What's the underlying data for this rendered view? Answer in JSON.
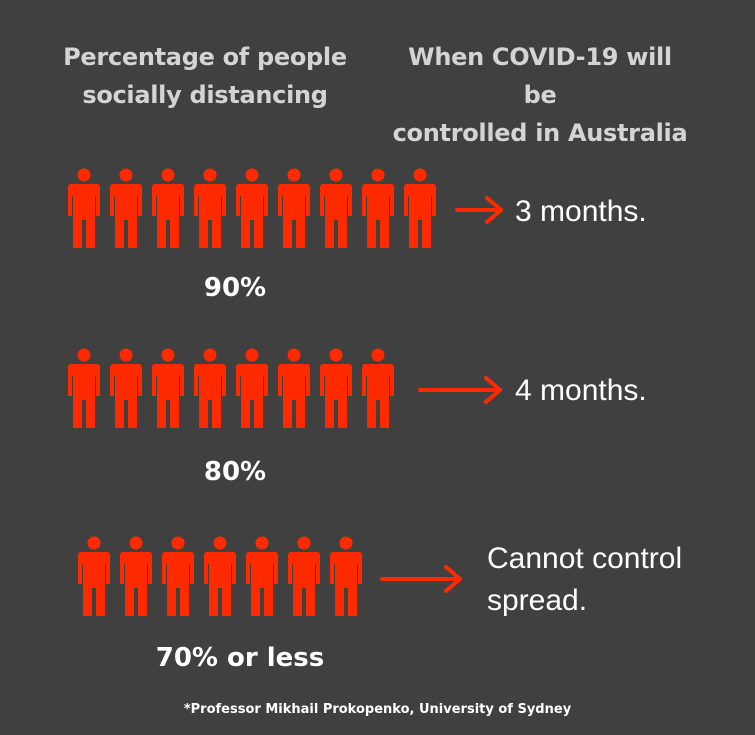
{
  "headers": {
    "left": "Percentage of people\nsocially distancing",
    "right": "When COVID-19 will be\ncontrolled in Australia"
  },
  "rows": [
    {
      "people_count": 9,
      "percentage": "90%",
      "result": "3 months."
    },
    {
      "people_count": 8,
      "percentage": "80%",
      "result": "4 months."
    },
    {
      "people_count": 7,
      "percentage": "70% or less",
      "result": "Cannot control\nspread."
    }
  ],
  "source": "*Professor Mikhail Prokopenko, University of Sydney",
  "colors": {
    "background": "#404040",
    "person": "#ff2a00",
    "arrow": "#ff2a00",
    "header_text": "#d4d4d4",
    "body_text": "#ffffff"
  },
  "icons": {
    "person": "person-icon",
    "arrow": "arrow-right-icon"
  }
}
